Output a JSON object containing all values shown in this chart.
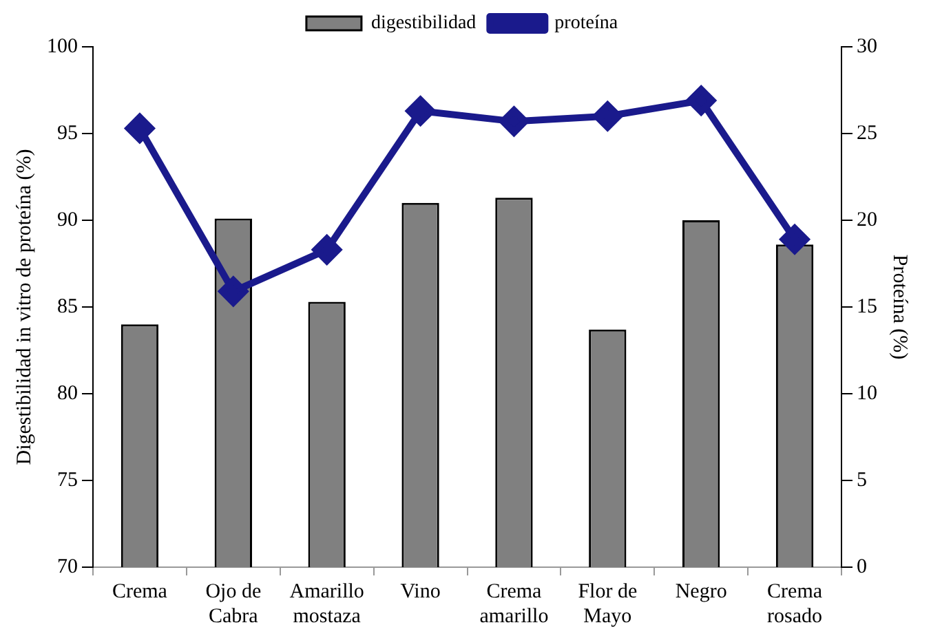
{
  "chart_data": {
    "type": "bar",
    "categories": [
      "Crema",
      "Ojo de Cabra",
      "Amarillo mostaza",
      "Vino",
      "Crema amarillo",
      "Flor de Mayo",
      "Negro",
      "Crema rosado"
    ],
    "ylabel": "Digestibilidad in vitro de proteína (%)",
    "y2label": "Proteína (%)",
    "ylim": [
      70,
      100
    ],
    "yticks": [
      70,
      75,
      80,
      85,
      90,
      95,
      100
    ],
    "y2lim": [
      0,
      30
    ],
    "y2ticks": [
      0,
      5,
      10,
      15,
      20,
      25,
      30
    ],
    "series": [
      {
        "name": "digestibilidad",
        "color": "#808080",
        "values": [
          84.0,
          90.1,
          85.3,
          91.0,
          91.3,
          83.7,
          90.0,
          88.6
        ]
      },
      {
        "name": "proteína",
        "type": "line",
        "axis": "y2",
        "color": "#1a1a8c",
        "marker": "diamond",
        "values": [
          25.3,
          15.9,
          18.3,
          26.3,
          25.7,
          26.0,
          26.9,
          18.9
        ]
      }
    ],
    "legend": "top",
    "grid": false
  }
}
